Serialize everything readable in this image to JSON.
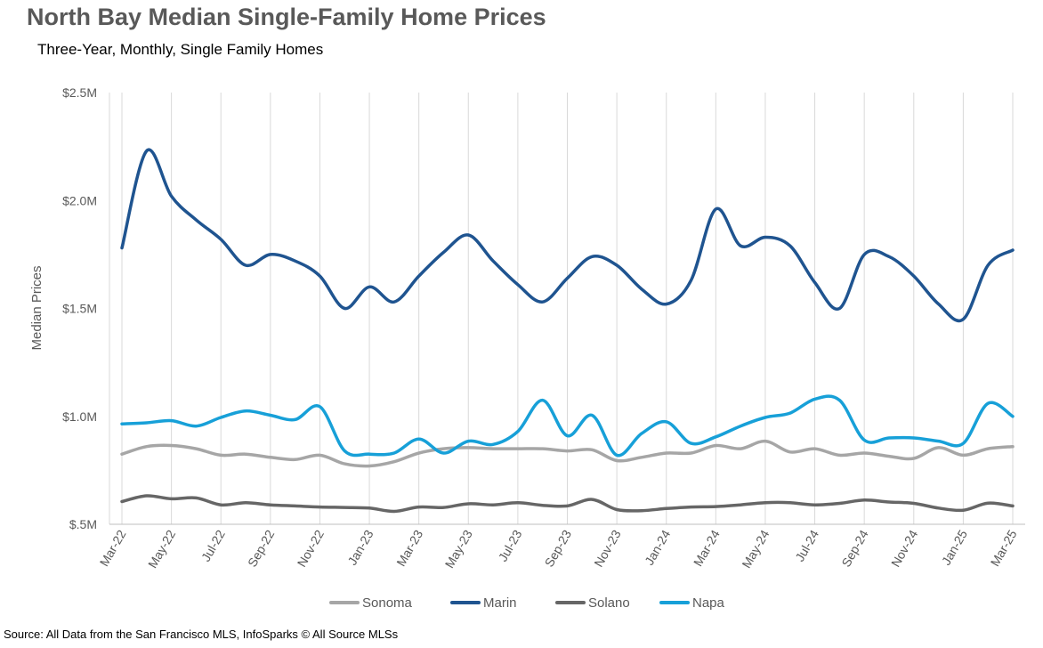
{
  "chart_data": {
    "type": "line",
    "title": "North Bay Median Single-Family Home Prices",
    "subtitle": "Three-Year, Monthly, Single Family Homes",
    "ylabel": "Median Prices",
    "xlabel": "",
    "ylim": [
      500000,
      2500000
    ],
    "y_ticks": [
      500000,
      1000000,
      1500000,
      2000000,
      2500000
    ],
    "y_tick_labels": [
      "$.5M",
      "$1.0M",
      "$1.5M",
      "$2.0M",
      "$2.5M"
    ],
    "grid": "vertical",
    "legend_position": "bottom",
    "x": [
      "Mar-22",
      "Apr-22",
      "May-22",
      "Jun-22",
      "Jul-22",
      "Aug-22",
      "Sep-22",
      "Oct-22",
      "Nov-22",
      "Dec-22",
      "Jan-23",
      "Feb-23",
      "Mar-23",
      "Apr-23",
      "May-23",
      "Jun-23",
      "Jul-23",
      "Aug-23",
      "Sep-23",
      "Oct-23",
      "Nov-23",
      "Dec-23",
      "Jan-24",
      "Feb-24",
      "Mar-24",
      "Apr-24",
      "May-24",
      "Jun-24",
      "Jul-24",
      "Aug-24",
      "Sep-24",
      "Oct-24",
      "Nov-24",
      "Dec-24",
      "Jan-25",
      "Feb-25",
      "Mar-25"
    ],
    "x_tick_labels": [
      "Mar-22",
      "May-22",
      "Jul-22",
      "Sep-22",
      "Nov-22",
      "Jan-23",
      "Mar-23",
      "May-23",
      "Jul-23",
      "Sep-23",
      "Nov-23",
      "Jan-24",
      "Mar-24",
      "May-24",
      "Jul-24",
      "Sep-24",
      "Nov-24",
      "Jan-25",
      "Mar-25"
    ],
    "series": [
      {
        "name": "Sonoma",
        "color": "#a6a6a6",
        "values": [
          825000,
          860000,
          865000,
          850000,
          820000,
          825000,
          810000,
          800000,
          820000,
          780000,
          770000,
          790000,
          830000,
          850000,
          855000,
          850000,
          850000,
          850000,
          840000,
          845000,
          795000,
          810000,
          830000,
          830000,
          865000,
          850000,
          885000,
          835000,
          850000,
          820000,
          830000,
          815000,
          805000,
          855000,
          820000,
          850000,
          860000
        ]
      },
      {
        "name": "Marin",
        "color": "#1f5490",
        "values": [
          1780000,
          2230000,
          2020000,
          1910000,
          1820000,
          1700000,
          1750000,
          1720000,
          1650000,
          1500000,
          1600000,
          1530000,
          1650000,
          1760000,
          1840000,
          1720000,
          1610000,
          1530000,
          1640000,
          1740000,
          1700000,
          1590000,
          1520000,
          1630000,
          1960000,
          1790000,
          1830000,
          1790000,
          1620000,
          1500000,
          1750000,
          1740000,
          1650000,
          1520000,
          1450000,
          1700000,
          1770000
        ]
      },
      {
        "name": "Solano",
        "color": "#666666",
        "values": [
          605000,
          632000,
          618000,
          622000,
          590000,
          600000,
          590000,
          585000,
          580000,
          578000,
          575000,
          560000,
          580000,
          578000,
          595000,
          590000,
          600000,
          588000,
          585000,
          615000,
          568000,
          563000,
          573000,
          580000,
          582000,
          590000,
          600000,
          600000,
          590000,
          597000,
          612000,
          603000,
          597000,
          575000,
          565000,
          598000,
          585000
        ]
      },
      {
        "name": "Napa",
        "color": "#17a0d8",
        "values": [
          965000,
          970000,
          980000,
          955000,
          995000,
          1025000,
          1005000,
          985000,
          1045000,
          840000,
          825000,
          830000,
          895000,
          830000,
          885000,
          870000,
          930000,
          1075000,
          910000,
          1005000,
          820000,
          920000,
          975000,
          875000,
          905000,
          955000,
          995000,
          1015000,
          1080000,
          1075000,
          890000,
          900000,
          900000,
          885000,
          875000,
          1060000,
          1000000
        ]
      }
    ]
  },
  "source": "Source: All Data from the San Francisco MLS, InfoSparks © All Source MLSs"
}
